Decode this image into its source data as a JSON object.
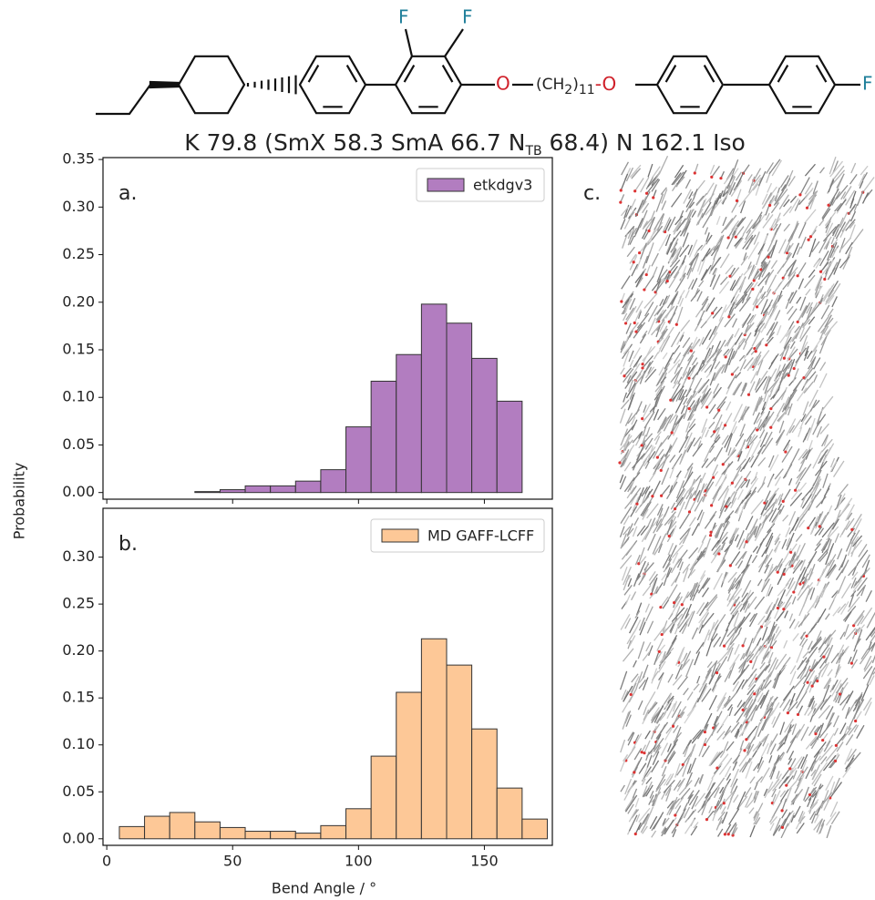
{
  "structure": {
    "f1": "F",
    "f2": "F",
    "o1": "O",
    "chain_open": "(CH",
    "chain_sub1": "2",
    "chain_close": ")",
    "chain_sub2": "11",
    "o2": "-O",
    "f3": "F",
    "phase_pre": "K 79.8 (SmX 58.3 SmA 66.7 N",
    "phase_sub": "TB",
    "phase_post": " 68.4) N 162.1 Iso",
    "panel_c": "c."
  },
  "chart_data": [
    {
      "type": "histogram",
      "panel_label": "a.",
      "ylabel": "Probability",
      "bins": [
        35,
        45,
        55,
        65,
        75,
        85,
        95,
        105,
        115,
        125,
        135,
        145,
        155,
        165
      ],
      "series": [
        {
          "name": "etkdgv3",
          "color": "#b27dc0",
          "values": [
            0.001,
            0.003,
            0.007,
            0.007,
            0.012,
            0.024,
            0.069,
            0.117,
            0.145,
            0.198,
            0.178,
            0.141,
            0.096
          ]
        }
      ],
      "xlim": [
        -1.5,
        177
      ],
      "ylim": [
        -0.007,
        0.352
      ],
      "yticks": [
        {
          "value": 0,
          "label": "0.00"
        },
        {
          "value": 0.05,
          "label": "0.05"
        },
        {
          "value": 0.1,
          "label": "0.10"
        },
        {
          "value": 0.15,
          "label": "0.15"
        },
        {
          "value": 0.2,
          "label": "0.20"
        },
        {
          "value": 0.25,
          "label": "0.25"
        },
        {
          "value": 0.3,
          "label": "0.30"
        },
        {
          "value": 0.35,
          "label": "0.35"
        }
      ],
      "legend": "upper right"
    },
    {
      "type": "histogram",
      "panel_label": "b.",
      "xlabel": "Bend Angle / °",
      "bins": [
        5,
        15,
        25,
        35,
        45,
        55,
        65,
        75,
        85,
        95,
        105,
        115,
        125,
        135,
        145,
        155,
        165,
        175
      ],
      "series": [
        {
          "name": "MD GAFF-LCFF",
          "color": "#fdc897",
          "values": [
            0.013,
            0.024,
            0.028,
            0.018,
            0.012,
            0.008,
            0.008,
            0.006,
            0.014,
            0.032,
            0.088,
            0.156,
            0.213,
            0.185,
            0.117,
            0.054,
            0.021
          ]
        }
      ],
      "xlim": [
        -1.5,
        177
      ],
      "ylim": [
        -0.007,
        0.352
      ],
      "xticks": [
        0,
        50,
        100,
        150
      ],
      "yticks": [
        {
          "value": 0,
          "label": "0.00"
        },
        {
          "value": 0.05,
          "label": "0.05"
        },
        {
          "value": 0.1,
          "label": "0.10"
        },
        {
          "value": 0.15,
          "label": "0.15"
        },
        {
          "value": 0.2,
          "label": "0.20"
        },
        {
          "value": 0.25,
          "label": "0.25"
        },
        {
          "value": 0.3,
          "label": "0.30"
        }
      ],
      "legend": "upper right"
    }
  ]
}
